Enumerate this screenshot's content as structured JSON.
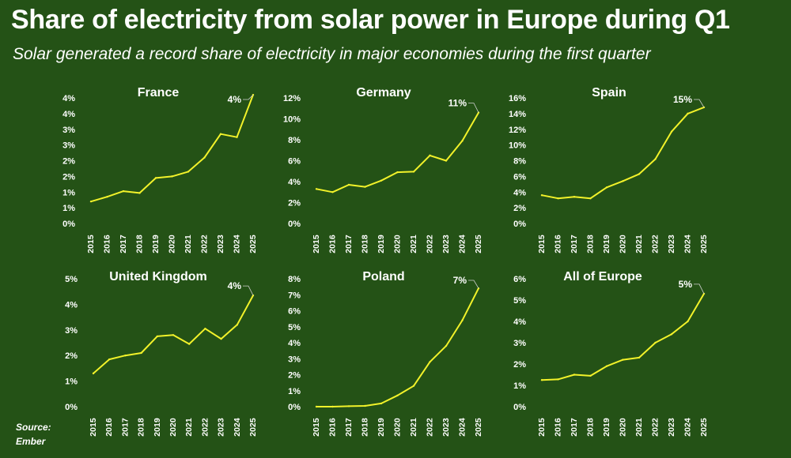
{
  "title": "Share of electricity from solar power in Europe during Q1",
  "subtitle": "Solar generated a record share of electricity in major economies during the first quarter",
  "source": {
    "line1": "Source:",
    "line2": "Ember"
  },
  "colors": {
    "background": "#245216",
    "line": "#f2f22a",
    "text": "#ffffff"
  },
  "chart_data": [
    {
      "type": "line",
      "title": "France",
      "x": [
        "2015",
        "2016",
        "2017",
        "2018",
        "2019",
        "2020",
        "2021",
        "2022",
        "2023",
        "2024",
        "2025"
      ],
      "series": [
        {
          "values": [
            0.7,
            0.85,
            1.03,
            0.97,
            1.45,
            1.5,
            1.65,
            2.1,
            2.85,
            2.75,
            4.1
          ]
        }
      ],
      "ylim": [
        0,
        4
      ],
      "yticks": [
        0,
        0.5,
        1,
        1.5,
        2,
        2.5,
        3,
        3.5,
        4
      ],
      "ytick_labels": [
        "0%",
        "1%",
        "1%",
        "2%",
        "2%",
        "3%",
        "3%",
        "4%",
        "4%"
      ],
      "data_label": {
        "text": "4%",
        "index": 10
      },
      "grid": false
    },
    {
      "type": "line",
      "title": "Germany",
      "x": [
        "2015",
        "2016",
        "2017",
        "2018",
        "2019",
        "2020",
        "2021",
        "2022",
        "2023",
        "2024",
        "2025"
      ],
      "series": [
        {
          "values": [
            3.3,
            3.0,
            3.7,
            3.5,
            4.1,
            4.9,
            4.95,
            6.5,
            6.0,
            7.9,
            10.6
          ]
        }
      ],
      "ylim": [
        0,
        12
      ],
      "yticks": [
        0,
        2,
        4,
        6,
        8,
        10,
        12
      ],
      "ytick_labels": [
        "0%",
        "2%",
        "4%",
        "6%",
        "8%",
        "10%",
        "12%"
      ],
      "data_label": {
        "text": "11%",
        "index": 10
      },
      "grid": false
    },
    {
      "type": "line",
      "title": "Spain",
      "x": [
        "2015",
        "2016",
        "2017",
        "2018",
        "2019",
        "2020",
        "2021",
        "2022",
        "2023",
        "2024",
        "2025"
      ],
      "series": [
        {
          "values": [
            3.6,
            3.2,
            3.4,
            3.2,
            4.6,
            5.4,
            6.3,
            8.2,
            11.7,
            14.0,
            14.8
          ]
        }
      ],
      "ylim": [
        0,
        16
      ],
      "yticks": [
        0,
        2,
        4,
        6,
        8,
        10,
        12,
        14,
        16
      ],
      "ytick_labels": [
        "0%",
        "2%",
        "4%",
        "6%",
        "8%",
        "10%",
        "12%",
        "14%",
        "16%"
      ],
      "data_label": {
        "text": "15%",
        "index": 10
      },
      "grid": false
    },
    {
      "type": "line",
      "title": "United Kingdom",
      "x": [
        "2015",
        "2016",
        "2017",
        "2018",
        "2019",
        "2020",
        "2021",
        "2022",
        "2023",
        "2024",
        "2025"
      ],
      "series": [
        {
          "values": [
            1.3,
            1.85,
            2.0,
            2.1,
            2.75,
            2.8,
            2.45,
            3.05,
            2.65,
            3.2,
            4.35
          ]
        }
      ],
      "ylim": [
        0,
        5
      ],
      "yticks": [
        0,
        1,
        2,
        3,
        4,
        5
      ],
      "ytick_labels": [
        "0%",
        "1%",
        "2%",
        "3%",
        "4%",
        "5%"
      ],
      "data_label": {
        "text": "4%",
        "index": 10
      },
      "grid": false
    },
    {
      "type": "line",
      "title": "Poland",
      "x": [
        "2015",
        "2016",
        "2017",
        "2018",
        "2019",
        "2020",
        "2021",
        "2022",
        "2023",
        "2024",
        "2025"
      ],
      "series": [
        {
          "values": [
            0.0,
            0.0,
            0.03,
            0.05,
            0.2,
            0.7,
            1.3,
            2.8,
            3.8,
            5.4,
            7.4
          ]
        }
      ],
      "ylim": [
        0,
        8
      ],
      "yticks": [
        0,
        1,
        2,
        3,
        4,
        5,
        6,
        7,
        8
      ],
      "ytick_labels": [
        "0%",
        "1%",
        "2%",
        "3%",
        "4%",
        "5%",
        "6%",
        "7%",
        "8%"
      ],
      "data_label": {
        "text": "7%",
        "index": 10
      },
      "grid": false
    },
    {
      "type": "line",
      "title": "All of Europe",
      "x": [
        "2015",
        "2016",
        "2017",
        "2018",
        "2019",
        "2020",
        "2021",
        "2022",
        "2023",
        "2024",
        "2025"
      ],
      "series": [
        {
          "values": [
            1.25,
            1.28,
            1.5,
            1.45,
            1.9,
            2.2,
            2.3,
            3.0,
            3.4,
            4.0,
            5.3
          ]
        }
      ],
      "ylim": [
        0,
        6
      ],
      "yticks": [
        0,
        1,
        2,
        3,
        4,
        5,
        6
      ],
      "ytick_labels": [
        "0%",
        "1%",
        "2%",
        "3%",
        "4%",
        "5%",
        "6%"
      ],
      "data_label": {
        "text": "5%",
        "index": 10
      },
      "grid": false
    }
  ]
}
